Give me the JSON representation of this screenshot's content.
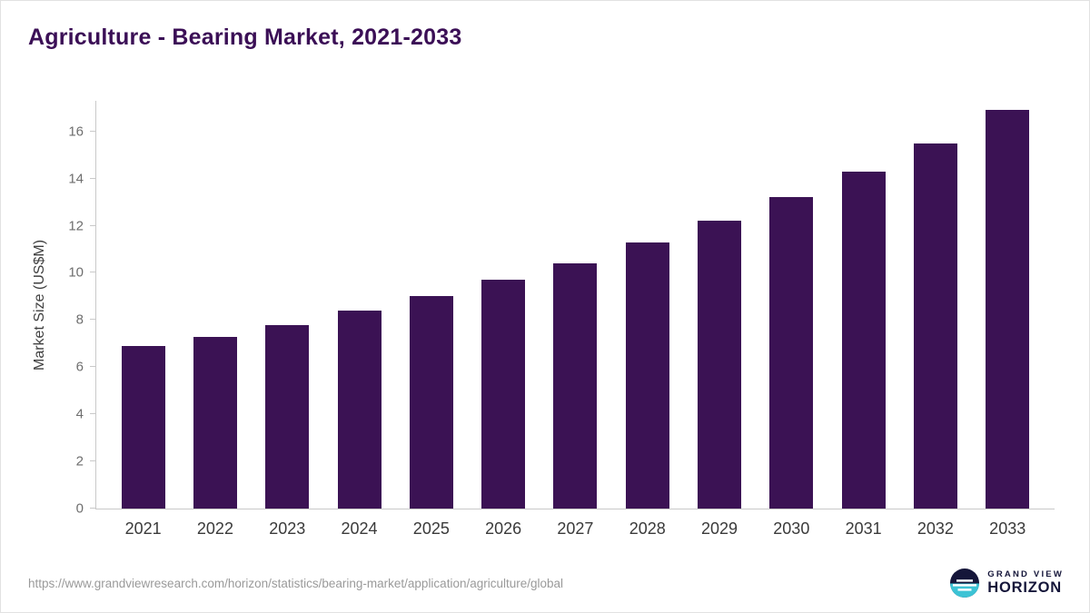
{
  "title": "Agriculture - Bearing Market, 2021-2033",
  "footer": {
    "source_url": "https://www.grandviewresearch.com/horizon/statistics/bearing-market/application/agriculture/global",
    "logo_top": "GRAND VIEW",
    "logo_bottom": "HORIZON"
  },
  "colors": {
    "bar": "#3b1254",
    "title_text": "#3b0f56",
    "axis_line": "#c9c9c9",
    "tick_text": "#6e6e6e",
    "logo_navy": "#15163a",
    "logo_teal": "#3cc3d5"
  },
  "chart_data": {
    "type": "bar",
    "title": "Agriculture - Bearing Market, 2021-2033",
    "categories": [
      "2021",
      "2022",
      "2023",
      "2024",
      "2025",
      "2026",
      "2027",
      "2028",
      "2029",
      "2030",
      "2031",
      "2032",
      "2033"
    ],
    "values": [
      6.9,
      7.3,
      7.8,
      8.4,
      9.0,
      9.7,
      10.4,
      11.3,
      12.2,
      13.2,
      14.3,
      15.5,
      16.9
    ],
    "xlabel": "",
    "ylabel": "Market Size (US$M)",
    "ylim": [
      0,
      17.3
    ],
    "yticks": [
      0,
      2,
      4,
      6,
      8,
      10,
      12,
      14,
      16
    ],
    "grid": false,
    "legend": false,
    "bar_color": "#3b1254"
  }
}
